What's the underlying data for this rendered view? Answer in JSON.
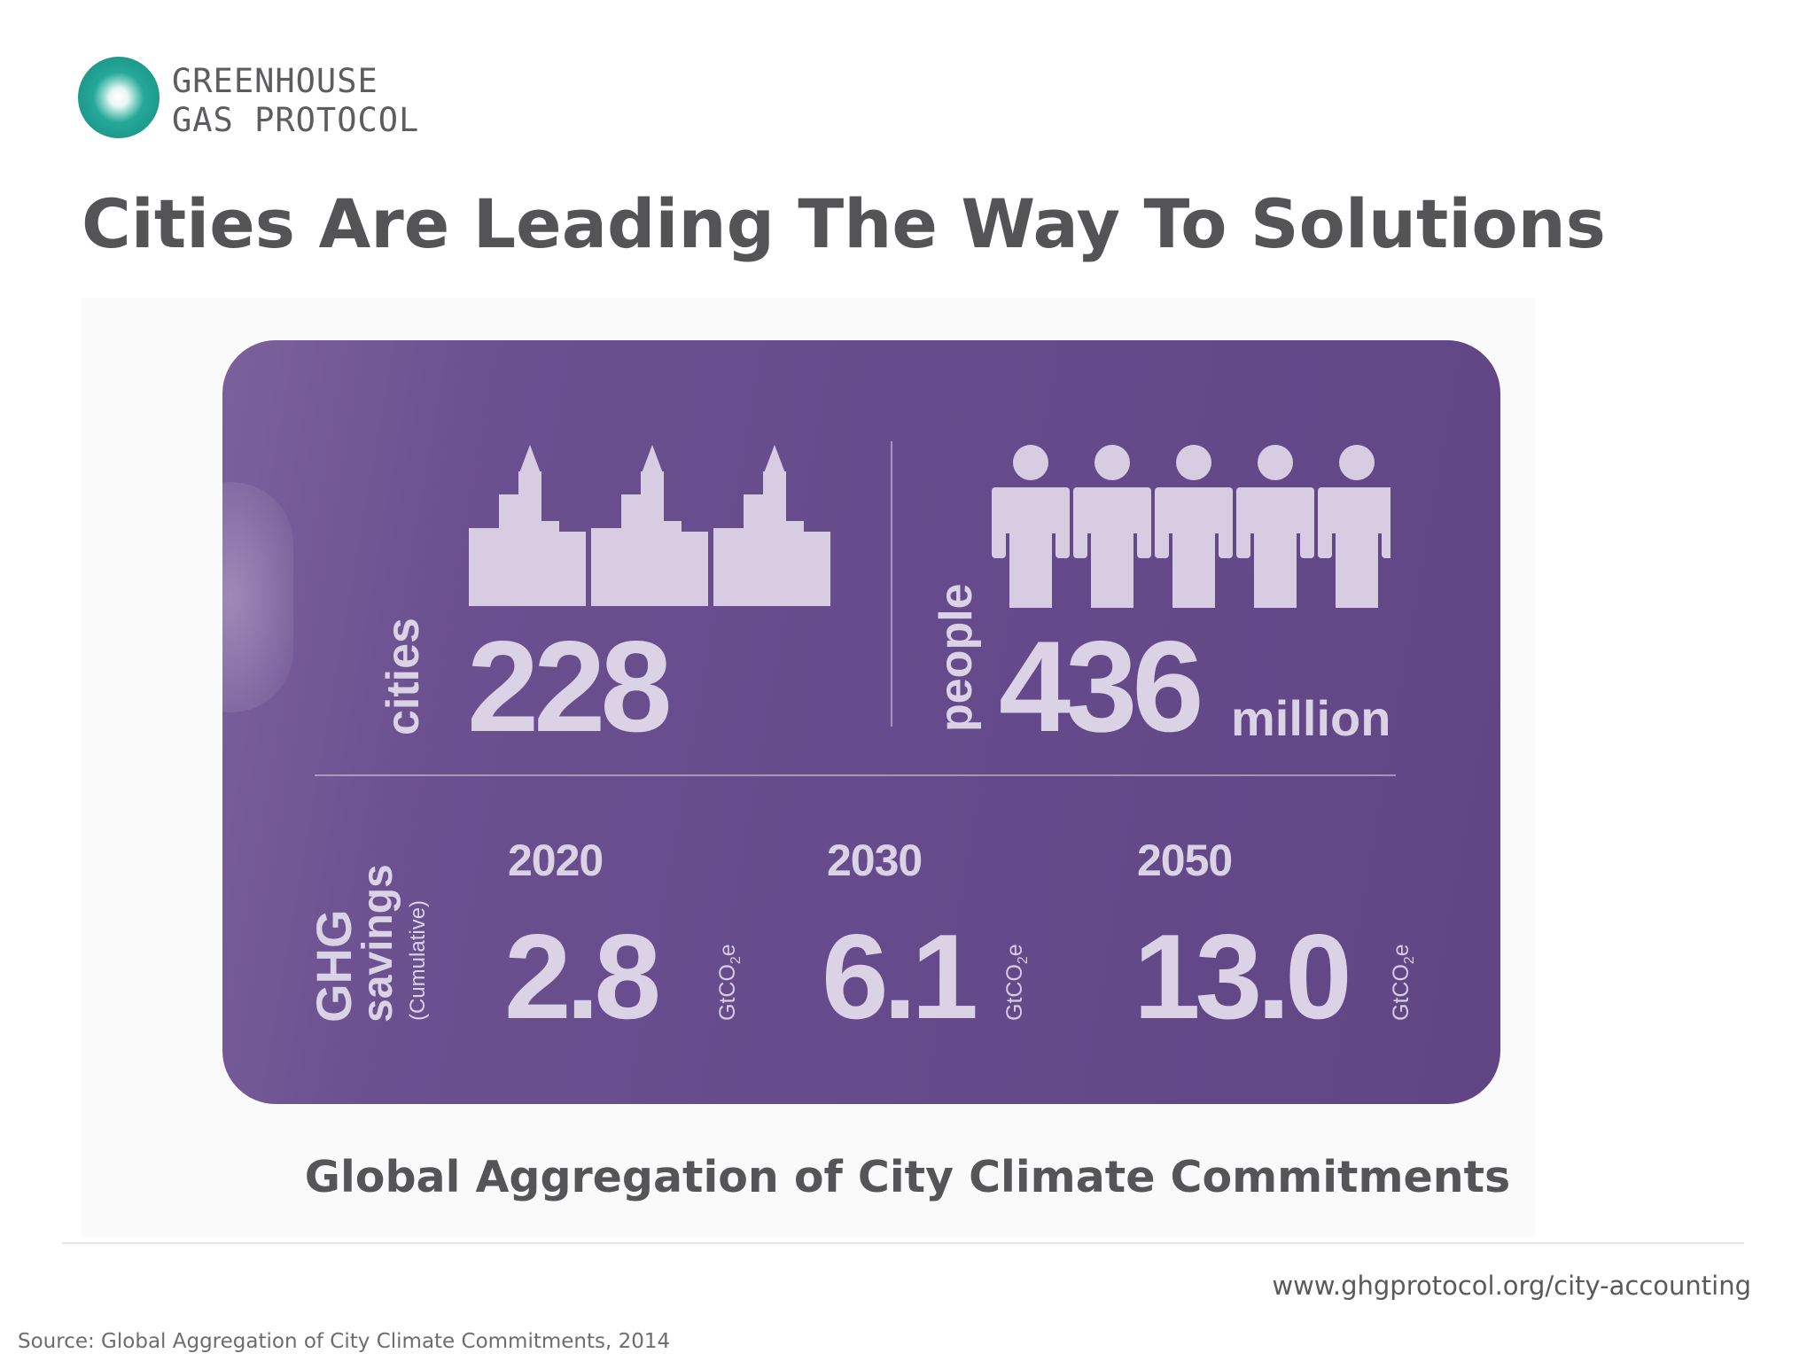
{
  "logo": {
    "line1": "GREENHOUSE",
    "line2": "GAS PROTOCOL",
    "ring_color": "#25a89a",
    "icon": "ring-logo-icon"
  },
  "title": "Cities Are Leading The Way To Solutions",
  "infographic": {
    "background_color": "#654b8b",
    "text_color": "#dcd2e6",
    "cities": {
      "label": "cities",
      "value": "228",
      "icon": "city-skyline-icon"
    },
    "people": {
      "label": "people",
      "value": "436",
      "unit": "million",
      "icon": "people-icon"
    },
    "savings": {
      "label_line1": "GHG",
      "label_line2": "savings",
      "label_note": "(Cumulative)",
      "items": [
        {
          "year": "2020",
          "value": "2.8",
          "unit": "GtCO",
          "unit_sub": "2",
          "unit_suffix": "e"
        },
        {
          "year": "2030",
          "value": "6.1",
          "unit": "GtCO",
          "unit_sub": "2",
          "unit_suffix": "e"
        },
        {
          "year": "2050",
          "value": "13.0",
          "unit": "GtCO",
          "unit_sub": "2",
          "unit_suffix": "e"
        }
      ]
    }
  },
  "caption": "Global Aggregation of City Climate Commitments",
  "footer": {
    "url": "www.ghgprotocol.org/city-accounting",
    "source": "Source: Global Aggregation of City Climate Commitments, 2014"
  }
}
